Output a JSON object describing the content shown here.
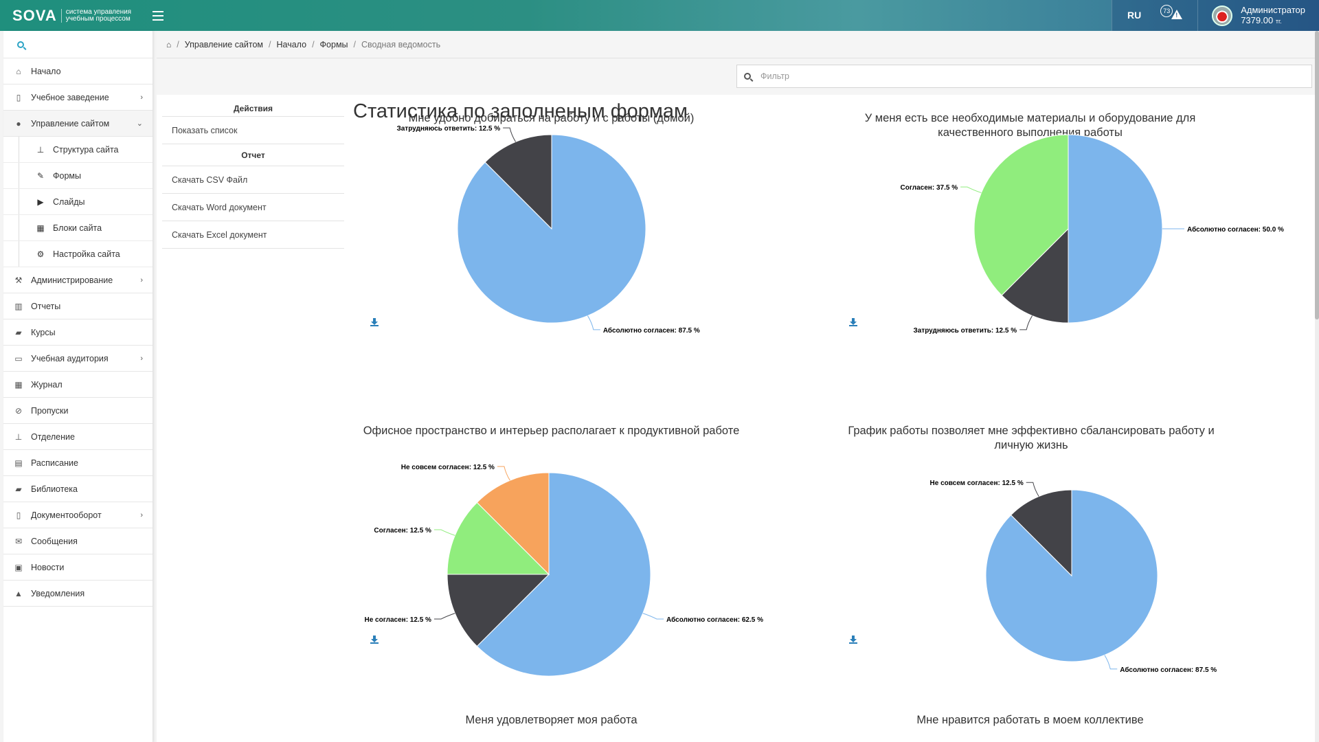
{
  "header": {
    "logo_text": "SOVA",
    "logo_subtitle": "система управления учебным процессом",
    "language": "RU",
    "alert_count": "73",
    "user_name": "Администратор",
    "user_balance": "7379.00",
    "user_currency": "тг."
  },
  "sidebar": {
    "items": [
      {
        "label": "Начало",
        "icon": "home-icon",
        "glyph": "⌂"
      },
      {
        "label": "Учебное заведение",
        "icon": "building-icon",
        "glyph": "▯",
        "chevron": "›"
      },
      {
        "label": "Управление сайтом",
        "icon": "globe-icon",
        "glyph": "●",
        "chevron": "⌄"
      },
      {
        "label": "Администрирование",
        "icon": "gavel-icon",
        "glyph": "⚒",
        "chevron": "›"
      },
      {
        "label": "Отчеты",
        "icon": "bar-chart-icon",
        "glyph": "▥"
      },
      {
        "label": "Курсы",
        "icon": "book-icon",
        "glyph": "▰"
      },
      {
        "label": "Учебная аудитория",
        "icon": "projector-icon",
        "glyph": "▭",
        "chevron": "›"
      },
      {
        "label": "Журнал",
        "icon": "table-icon",
        "glyph": "▦"
      },
      {
        "label": "Пропуски",
        "icon": "ban-icon",
        "glyph": "⊘"
      },
      {
        "label": "Отделение",
        "icon": "sitemap-icon",
        "glyph": "⊥"
      },
      {
        "label": "Расписание",
        "icon": "calendar-icon",
        "glyph": "▤"
      },
      {
        "label": "Библиотека",
        "icon": "library-icon",
        "glyph": "▰"
      },
      {
        "label": "Документооборот",
        "icon": "document-icon",
        "glyph": "▯",
        "chevron": "›"
      },
      {
        "label": "Сообщения",
        "icon": "envelope-icon",
        "glyph": "✉"
      },
      {
        "label": "Новости",
        "icon": "newspaper-icon",
        "glyph": "▣"
      },
      {
        "label": "Уведомления",
        "icon": "warning-icon",
        "glyph": "▲"
      }
    ],
    "subitems": [
      {
        "label": "Структура сайта",
        "icon": "sitemap-icon",
        "glyph": "⊥"
      },
      {
        "label": "Формы",
        "icon": "pencil-icon",
        "glyph": "✎"
      },
      {
        "label": "Слайды",
        "icon": "play-square-icon",
        "glyph": "▶"
      },
      {
        "label": "Блоки сайта",
        "icon": "grid-icon",
        "glyph": "▦"
      },
      {
        "label": "Настройка сайта",
        "icon": "gears-icon",
        "glyph": "⚙"
      }
    ]
  },
  "breadcrumb": [
    "Управление сайтом",
    "Начало",
    "Формы",
    "Сводная ведомость"
  ],
  "filter": {
    "placeholder": "Фильтр"
  },
  "actions": {
    "heading_actions": "Действия",
    "show_list": "Показать список",
    "heading_report": "Отчет",
    "csv": "Скачать CSV Файл",
    "word": "Скачать Word документ",
    "excel": "Скачать Excel документ"
  },
  "page_title": "Статистика по заполненым формам",
  "colors": {
    "absolutely_agree": "#7cb5ec",
    "agree": "#90ed7d",
    "unsure": "#434348",
    "not_quite": "#f7a35c",
    "disagree": "#434348",
    "accent": "#2aa3c5"
  },
  "chart_data": [
    {
      "type": "pie",
      "title": "Мне удобно добираться на работу и с работы (домой)",
      "slices": [
        {
          "label": "Абсолютно согласен",
          "value": 87.5,
          "color": "#7cb5ec"
        },
        {
          "label": "Затрудняюсь ответить",
          "value": 12.5,
          "color": "#434348"
        }
      ]
    },
    {
      "type": "pie",
      "title": "У меня есть все необходимые материалы и оборудование для качественного выполнения работы",
      "slices": [
        {
          "label": "Абсолютно согласен",
          "value": 50.0,
          "color": "#7cb5ec"
        },
        {
          "label": "Затрудняюсь ответить",
          "value": 12.5,
          "color": "#434348"
        },
        {
          "label": "Согласен",
          "value": 37.5,
          "color": "#90ed7d"
        }
      ]
    },
    {
      "type": "pie",
      "title": "Офисное пространство и интерьер располагает к продуктивной работе",
      "slices": [
        {
          "label": "Абсолютно согласен",
          "value": 62.5,
          "color": "#7cb5ec"
        },
        {
          "label": "Не согласен",
          "value": 12.5,
          "color": "#434348"
        },
        {
          "label": "Согласен",
          "value": 12.5,
          "color": "#90ed7d"
        },
        {
          "label": "Не совсем согласен",
          "value": 12.5,
          "color": "#f7a35c"
        }
      ]
    },
    {
      "type": "pie",
      "title": "График работы позволяет мне эффективно сбалансировать работу и личную жизнь",
      "slices": [
        {
          "label": "Абсолютно согласен",
          "value": 87.5,
          "color": "#7cb5ec"
        },
        {
          "label": "Не совсем согласен",
          "value": 12.5,
          "color": "#434348"
        }
      ]
    },
    {
      "type": "pie",
      "title": "Меня удовлетворяет моя работа",
      "slices": []
    },
    {
      "type": "pie",
      "title": "Мне нравится работать в моем коллективе",
      "slices": []
    }
  ]
}
